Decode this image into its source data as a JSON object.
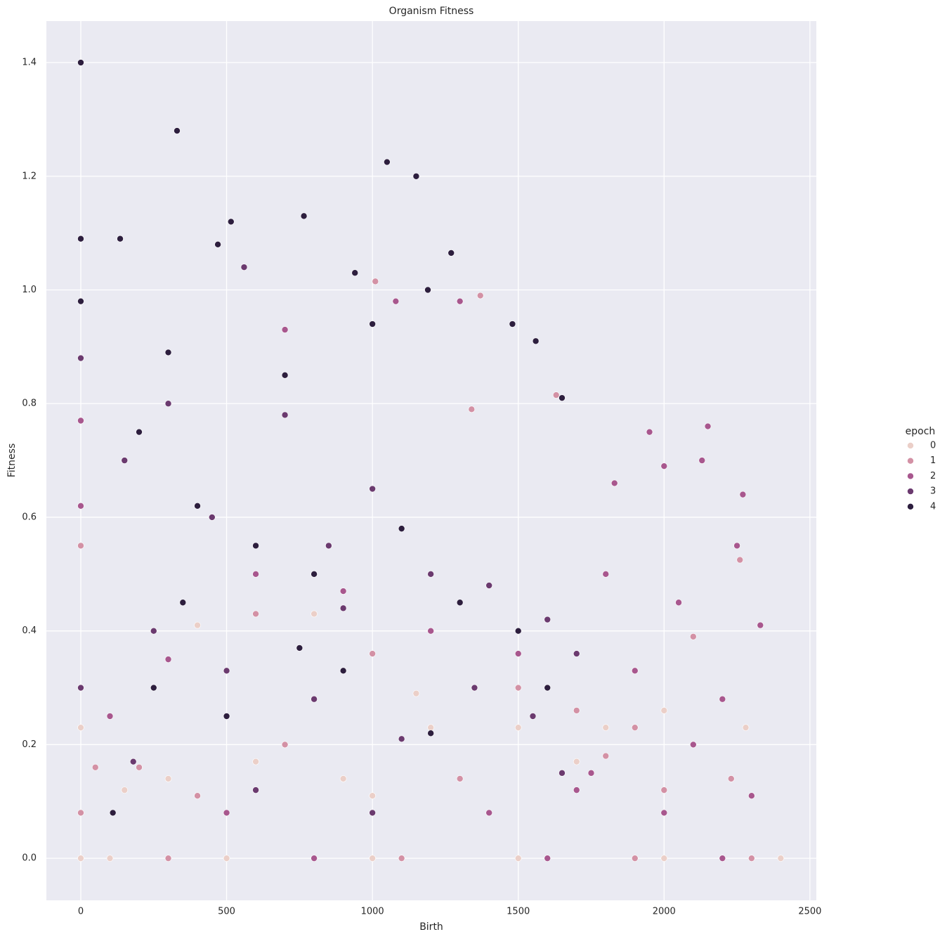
{
  "chart_data": {
    "type": "scatter",
    "title": "Organism Fitness",
    "x_label": "Birth",
    "y_label": "Fitness",
    "legend_title": "epoch",
    "legend": "right",
    "grid": true,
    "xlim": [
      -118,
      2522
    ],
    "xticks": [
      0,
      500,
      1000,
      1500,
      2000,
      2500
    ],
    "ylim": [
      -0.074,
      1.473
    ],
    "yticks": [
      {
        "value": 0,
        "label": "0.0"
      },
      0.2,
      0.4,
      0.6,
      0.8,
      {
        "value": 1,
        "label": "1.0"
      },
      1.2,
      1.4
    ],
    "series": [
      {
        "name": "0",
        "color": "#ebcfc8",
        "x": [
          0,
          0,
          100,
          500,
          1000,
          1500,
          2000,
          2400,
          300,
          600,
          900,
          1200,
          1500,
          1800,
          2100,
          2280,
          400,
          800,
          1150,
          1700,
          150,
          2000,
          1000
        ],
        "values": [
          0.23,
          0.0,
          0.0,
          0.0,
          0.0,
          0.0,
          0.0,
          0.0,
          0.14,
          0.17,
          0.14,
          0.23,
          0.23,
          0.23,
          0.2,
          0.23,
          0.41,
          0.43,
          0.29,
          0.17,
          0.12,
          0.26,
          0.11
        ]
      },
      {
        "name": "1",
        "color": "#d391a5",
        "x": [
          0,
          0,
          1010,
          1370,
          1630,
          1340,
          2260,
          2100,
          1900,
          1700,
          1500,
          1300,
          1000,
          700,
          400,
          200,
          2230,
          2000,
          1800,
          300,
          1100,
          1900,
          2300,
          50,
          600
        ],
        "values": [
          0.55,
          0.08,
          1.015,
          0.99,
          0.815,
          0.79,
          0.525,
          0.39,
          0.23,
          0.26,
          0.3,
          0.14,
          0.36,
          0.2,
          0.11,
          0.16,
          0.14,
          0.12,
          0.18,
          0.0,
          0.0,
          0.0,
          0.0,
          0.16,
          0.43
        ]
      },
      {
        "name": "2",
        "color": "#a8578e",
        "x": [
          0,
          0,
          2150,
          1950,
          2000,
          1830,
          2130,
          2270,
          2330,
          2300,
          2250,
          1800,
          2050,
          1900,
          2200,
          2100,
          1750,
          1500,
          1200,
          900,
          600,
          300,
          100,
          1300,
          1080,
          700,
          2000,
          1400,
          500,
          1700,
          2200,
          800,
          1600
        ],
        "values": [
          0.77,
          0.62,
          0.76,
          0.75,
          0.69,
          0.66,
          0.7,
          0.64,
          0.41,
          0.11,
          0.55,
          0.5,
          0.45,
          0.33,
          0.28,
          0.2,
          0.15,
          0.36,
          0.4,
          0.47,
          0.5,
          0.35,
          0.25,
          0.98,
          0.98,
          0.93,
          0.08,
          0.08,
          0.08,
          0.12,
          0.0,
          0.0,
          0.0
        ]
      },
      {
        "name": "3",
        "color": "#6b3a6f",
        "x": [
          0,
          560,
          150,
          300,
          450,
          700,
          850,
          1000,
          1200,
          1400,
          1600,
          1700,
          250,
          500,
          800,
          1100,
          1350,
          1550,
          0,
          180,
          600,
          1000,
          1650,
          900
        ],
        "values": [
          0.88,
          1.04,
          0.7,
          0.8,
          0.6,
          0.78,
          0.55,
          0.65,
          0.5,
          0.48,
          0.42,
          0.36,
          0.4,
          0.33,
          0.28,
          0.21,
          0.3,
          0.25,
          0.3,
          0.17,
          0.12,
          0.08,
          0.15,
          0.44
        ]
      },
      {
        "name": "4",
        "color": "#2d1e3e",
        "x": [
          0,
          330,
          1050,
          1150,
          0,
          135,
          515,
          765,
          470,
          1270,
          0,
          1190,
          940,
          1480,
          1560,
          300,
          700,
          1000,
          200,
          400,
          600,
          800,
          1100,
          1300,
          1500,
          250,
          500,
          900,
          1200,
          1650,
          110,
          1600,
          350,
          750
        ],
        "values": [
          1.4,
          1.28,
          1.225,
          1.2,
          1.09,
          1.09,
          1.12,
          1.13,
          1.08,
          1.065,
          0.98,
          1.0,
          1.03,
          0.94,
          0.91,
          0.89,
          0.85,
          0.94,
          0.75,
          0.62,
          0.55,
          0.5,
          0.58,
          0.45,
          0.4,
          0.3,
          0.25,
          0.33,
          0.22,
          0.81,
          0.08,
          0.3,
          0.45,
          0.37
        ]
      }
    ]
  }
}
